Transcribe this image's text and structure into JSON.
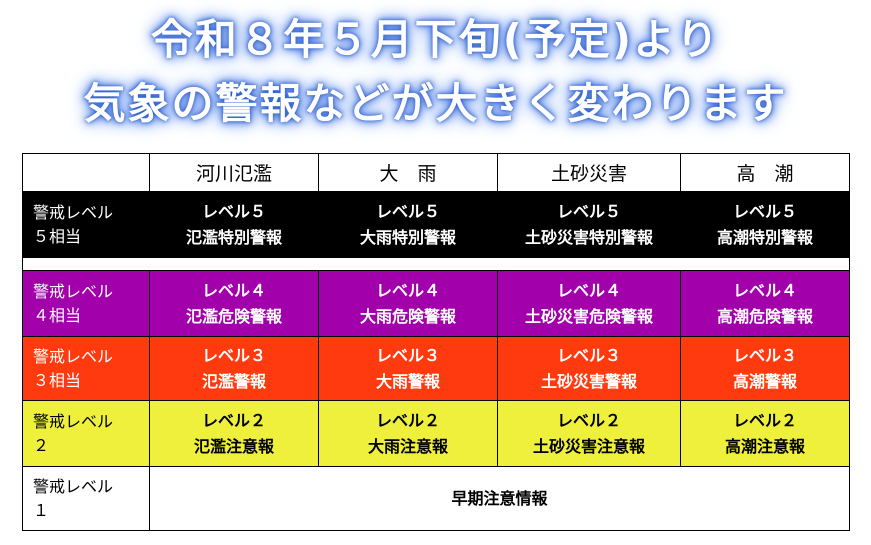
{
  "header": {
    "title_lines": [
      "令和８年５月下旬(予定)より",
      "気象の警報などが大きく変わります"
    ]
  },
  "table": {
    "columns": [
      "河川氾濫",
      "大　雨",
      "土砂災害",
      "高　潮"
    ],
    "rows": [
      {
        "label": [
          "警戒レベル",
          "５相当"
        ],
        "cells": [
          [
            "レベル５",
            "氾濫特別警報"
          ],
          [
            "レベル５",
            "大雨特別警報"
          ],
          [
            "レベル５",
            "土砂災害特別警報"
          ],
          [
            "レベル５",
            "高潮特別警報"
          ]
        ]
      },
      {
        "label": [
          "警戒レベル",
          "４相当"
        ],
        "cells": [
          [
            "レベル４",
            "氾濫危険警報"
          ],
          [
            "レベル４",
            "大雨危険警報"
          ],
          [
            "レベル４",
            "土砂災害危険警報"
          ],
          [
            "レベル４",
            "高潮危険警報"
          ]
        ]
      },
      {
        "label": [
          "警戒レベル",
          "３相当"
        ],
        "cells": [
          [
            "レベル３",
            "氾濫警報"
          ],
          [
            "レベル３",
            "大雨警報"
          ],
          [
            "レベル３",
            "土砂災害警報"
          ],
          [
            "レベル３",
            "高潮警報"
          ]
        ]
      },
      {
        "label": [
          "警戒レベル",
          "２"
        ],
        "cells": [
          [
            "レベル２",
            "氾濫注意報"
          ],
          [
            "レベル２",
            "大雨注意報"
          ],
          [
            "レベル２",
            "土砂災害注意報"
          ],
          [
            "レベル２",
            "高潮注意報"
          ]
        ]
      }
    ],
    "level1": {
      "label": [
        "警戒レベル",
        "１"
      ],
      "text": "早期注意情報"
    }
  }
}
